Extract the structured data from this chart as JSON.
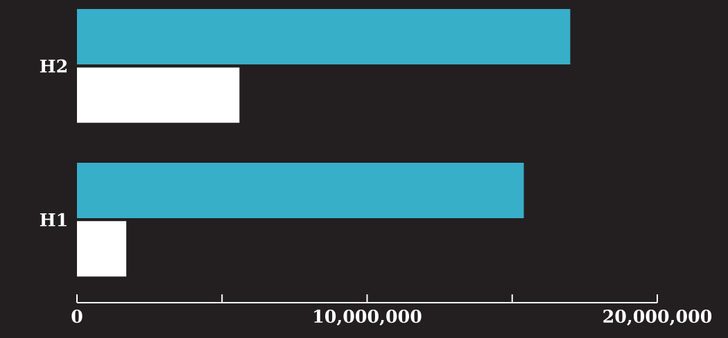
{
  "chart_data": {
    "type": "bar",
    "orientation": "horizontal",
    "categories": [
      "H2",
      "H1"
    ],
    "series": [
      {
        "color": "#38afc9",
        "values": [
          17000000,
          15400000
        ]
      },
      {
        "color": "#ffffff",
        "values": [
          5600000,
          1700000
        ]
      }
    ],
    "xlim": [
      0,
      20000000
    ],
    "xticks": [
      0,
      {
        "value": 5000000,
        "label": null
      },
      {
        "value": 10000000,
        "label": "10,000,000"
      },
      {
        "value": 15000000,
        "label": null
      },
      {
        "value": 20000000,
        "label": "20,000,000"
      }
    ],
    "grid": false
  }
}
